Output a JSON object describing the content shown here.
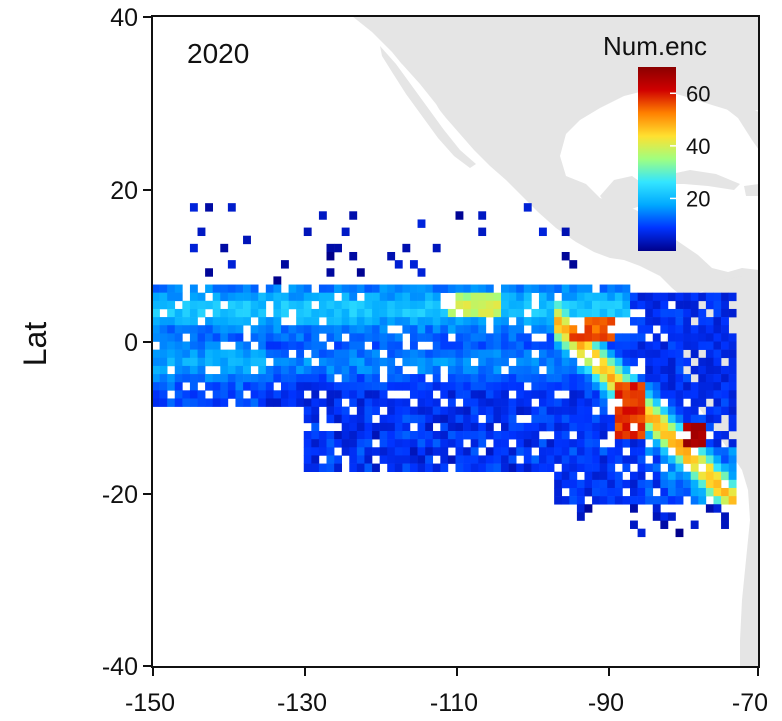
{
  "chart_data": {
    "type": "heatmap",
    "title": "2020",
    "xlabel": "",
    "ylabel": "Lat",
    "xlim": [
      -150,
      -70
    ],
    "ylim": [
      -40,
      40
    ],
    "x_ticks": [
      "-150",
      "-130",
      "-110",
      "-90",
      "-70"
    ],
    "y_ticks": [
      "40",
      "20",
      "0",
      "-20",
      "-40"
    ],
    "grid": false,
    "cell_size_deg": 1,
    "legend": {
      "title": "Num.enc",
      "placement": "top-right",
      "range": [
        0,
        70
      ],
      "ticks": [
        "60",
        "40",
        "20"
      ],
      "colors": [
        "#00008b",
        "#0033ff",
        "#00a8ff",
        "#33e5ff",
        "#a0ff80",
        "#ffe030",
        "#ff8000",
        "#d00000",
        "#8b0000"
      ]
    },
    "land_color": "#e5e5e5",
    "description": "Gridded fishing-encounter counts across the eastern tropical Pacific, densest along an equatorial band (about 0 to 7 N, 150 W to 88 W) and a diagonal ridge running from the Galapagos area toward the Peru coast (about 0 to 20 S, 95 W to 75 W)."
  }
}
